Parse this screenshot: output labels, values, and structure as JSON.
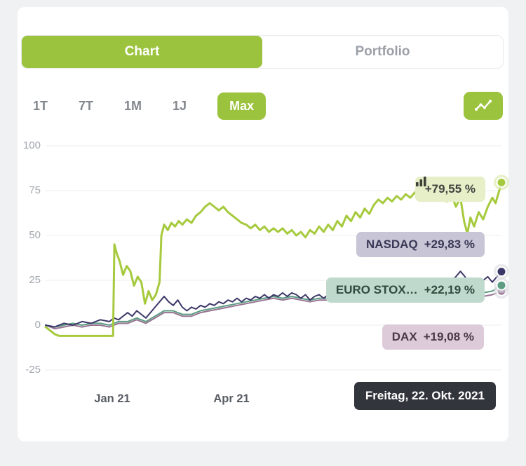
{
  "tabs": {
    "chart": "Chart",
    "portfolio": "Portfolio"
  },
  "ranges": {
    "items": [
      "1T",
      "7T",
      "1M",
      "1J",
      "Max"
    ],
    "active": "Max"
  },
  "toolbar": {
    "chart_type_icon": "line-chart-icon"
  },
  "colors": {
    "accent_green": "#9bc33d",
    "line_portfolio": "#a6ca3d",
    "line_nasdaq": "#3b3768",
    "line_eurostoxx": "#5b9c82",
    "line_dax": "#977492",
    "tooltip_bg": "#32353b"
  },
  "chart_data": {
    "type": "line",
    "title": "",
    "xlabel": "",
    "ylabel": "",
    "ylim": [
      -25,
      100
    ],
    "grid": true,
    "y_ticks": [
      100,
      75,
      50,
      25,
      0,
      -25
    ],
    "x_ticks": [
      "Jan 21",
      "Apr 21"
    ],
    "tooltip": "Freitag, 22. Okt. 2021",
    "series": [
      {
        "name": "Portfolio",
        "badge": "+79,55 %",
        "final_value": 79.55,
        "color": "#a6ca3d",
        "halo": "#d9e6a6",
        "width": 3,
        "points": [
          [
            0,
            -1
          ],
          [
            1,
            -3
          ],
          [
            2,
            -5
          ],
          [
            3,
            -6
          ],
          [
            5,
            -6
          ],
          [
            7,
            -6
          ],
          [
            9,
            -6
          ],
          [
            11,
            -6
          ],
          [
            13,
            -6
          ],
          [
            14.8,
            -6
          ],
          [
            15.1,
            45
          ],
          [
            15.6,
            40
          ],
          [
            16.2,
            36
          ],
          [
            17,
            28
          ],
          [
            17.8,
            33
          ],
          [
            18.6,
            30
          ],
          [
            19.4,
            22
          ],
          [
            20.2,
            27
          ],
          [
            21,
            24
          ],
          [
            21.8,
            12
          ],
          [
            22.6,
            19
          ],
          [
            23.4,
            14
          ],
          [
            24.2,
            17
          ],
          [
            25,
            24
          ],
          [
            25.4,
            50
          ],
          [
            26,
            56
          ],
          [
            26.8,
            53
          ],
          [
            27.6,
            57
          ],
          [
            28.4,
            55
          ],
          [
            29.2,
            58
          ],
          [
            30,
            56
          ],
          [
            31,
            59
          ],
          [
            32,
            57
          ],
          [
            33,
            61
          ],
          [
            34,
            63
          ],
          [
            35,
            66
          ],
          [
            36,
            68
          ],
          [
            37,
            66
          ],
          [
            38,
            64
          ],
          [
            39,
            66
          ],
          [
            40,
            63
          ],
          [
            41,
            61
          ],
          [
            42,
            59
          ],
          [
            43,
            57
          ],
          [
            44,
            56
          ],
          [
            45,
            54
          ],
          [
            46,
            56
          ],
          [
            47,
            53
          ],
          [
            48,
            55
          ],
          [
            49,
            52
          ],
          [
            50,
            54
          ],
          [
            51,
            52
          ],
          [
            52,
            54
          ],
          [
            53,
            51
          ],
          [
            54,
            53
          ],
          [
            55,
            50
          ],
          [
            56,
            52
          ],
          [
            57,
            49
          ],
          [
            58,
            53
          ],
          [
            59,
            51
          ],
          [
            60,
            55
          ],
          [
            61,
            52
          ],
          [
            62,
            56
          ],
          [
            63,
            53
          ],
          [
            64,
            58
          ],
          [
            65,
            55
          ],
          [
            66,
            61
          ],
          [
            67,
            58
          ],
          [
            68,
            63
          ],
          [
            69,
            60
          ],
          [
            70,
            65
          ],
          [
            71,
            62
          ],
          [
            72,
            67
          ],
          [
            73,
            70
          ],
          [
            74,
            68
          ],
          [
            75,
            71
          ],
          [
            76,
            69
          ],
          [
            77,
            72
          ],
          [
            78,
            70
          ],
          [
            79,
            73
          ],
          [
            80,
            71
          ],
          [
            81,
            74
          ],
          [
            82,
            71
          ],
          [
            83,
            75
          ],
          [
            84,
            72
          ],
          [
            85,
            76
          ],
          [
            86,
            72
          ],
          [
            87,
            75
          ],
          [
            88,
            69
          ],
          [
            89,
            73
          ],
          [
            90,
            66
          ],
          [
            91,
            71
          ],
          [
            91.8,
            58
          ],
          [
            92.5,
            51
          ],
          [
            93.2,
            60
          ],
          [
            94,
            55
          ],
          [
            95,
            63
          ],
          [
            96,
            59
          ],
          [
            97,
            66
          ],
          [
            98,
            71
          ],
          [
            98.7,
            68
          ],
          [
            99.4,
            74
          ],
          [
            100,
            79.55
          ]
        ]
      },
      {
        "name": "NASDAQ",
        "badge": "+29,83 %",
        "final_value": 29.83,
        "color": "#3b3768",
        "halo": "#dcdce2",
        "width": 2,
        "points": [
          [
            0,
            0
          ],
          [
            2,
            -1
          ],
          [
            4,
            1
          ],
          [
            6,
            0
          ],
          [
            8,
            2
          ],
          [
            10,
            1
          ],
          [
            12,
            3
          ],
          [
            14,
            2
          ],
          [
            15,
            4
          ],
          [
            16,
            3
          ],
          [
            17,
            5
          ],
          [
            18,
            7
          ],
          [
            19,
            5
          ],
          [
            20,
            8
          ],
          [
            21,
            6
          ],
          [
            22,
            4
          ],
          [
            23,
            7
          ],
          [
            24,
            10
          ],
          [
            25,
            13
          ],
          [
            26,
            16
          ],
          [
            27,
            13
          ],
          [
            28,
            11
          ],
          [
            29,
            14
          ],
          [
            30,
            10
          ],
          [
            31,
            8
          ],
          [
            32,
            10
          ],
          [
            33,
            9
          ],
          [
            34,
            11
          ],
          [
            35,
            10
          ],
          [
            36,
            12
          ],
          [
            37,
            11
          ],
          [
            38,
            13
          ],
          [
            39,
            12
          ],
          [
            40,
            14
          ],
          [
            41,
            13
          ],
          [
            42,
            15
          ],
          [
            43,
            13
          ],
          [
            44,
            15
          ],
          [
            45,
            14
          ],
          [
            46,
            16
          ],
          [
            47,
            15
          ],
          [
            48,
            17
          ],
          [
            49,
            15
          ],
          [
            50,
            17
          ],
          [
            51,
            16
          ],
          [
            52,
            18
          ],
          [
            53,
            16
          ],
          [
            54,
            18
          ],
          [
            55,
            17
          ],
          [
            56,
            15
          ],
          [
            57,
            17
          ],
          [
            58,
            14
          ],
          [
            59,
            16
          ],
          [
            60,
            17
          ],
          [
            61,
            15
          ],
          [
            62,
            17
          ],
          [
            63,
            18
          ],
          [
            64,
            19
          ],
          [
            65,
            17
          ],
          [
            66,
            19
          ],
          [
            67,
            18
          ],
          [
            68,
            20
          ],
          [
            69,
            19
          ],
          [
            70,
            21
          ],
          [
            71,
            19
          ],
          [
            72,
            21
          ],
          [
            73,
            20
          ],
          [
            74,
            22
          ],
          [
            75,
            21
          ],
          [
            76,
            22
          ],
          [
            77,
            21
          ],
          [
            78,
            23
          ],
          [
            79,
            21
          ],
          [
            80,
            20
          ],
          [
            81,
            22
          ],
          [
            82,
            23
          ],
          [
            83,
            21
          ],
          [
            84,
            20
          ],
          [
            85,
            19
          ],
          [
            86,
            21
          ],
          [
            87,
            22
          ],
          [
            88,
            23
          ],
          [
            89,
            25
          ],
          [
            90,
            27
          ],
          [
            91,
            30
          ],
          [
            92,
            27
          ],
          [
            93,
            23
          ],
          [
            94,
            20
          ],
          [
            95,
            22
          ],
          [
            96,
            25
          ],
          [
            97,
            27
          ],
          [
            98,
            24
          ],
          [
            99,
            27
          ],
          [
            100,
            29.83
          ]
        ]
      },
      {
        "name": "EURO STOX…",
        "badge": "+22,19 %",
        "final_value": 22.19,
        "color": "#5b9c82",
        "halo": "#dcdce2",
        "width": 2,
        "points": [
          [
            0,
            0
          ],
          [
            2,
            -1
          ],
          [
            4,
            0
          ],
          [
            6,
            1
          ],
          [
            8,
            0
          ],
          [
            10,
            1
          ],
          [
            12,
            1
          ],
          [
            14,
            0
          ],
          [
            16,
            2
          ],
          [
            18,
            2
          ],
          [
            20,
            4
          ],
          [
            22,
            2
          ],
          [
            24,
            5
          ],
          [
            26,
            8
          ],
          [
            28,
            8
          ],
          [
            30,
            6
          ],
          [
            32,
            6
          ],
          [
            34,
            8
          ],
          [
            36,
            9
          ],
          [
            38,
            10
          ],
          [
            40,
            11
          ],
          [
            42,
            12
          ],
          [
            44,
            13
          ],
          [
            46,
            14
          ],
          [
            48,
            15
          ],
          [
            50,
            16
          ],
          [
            52,
            15
          ],
          [
            54,
            16
          ],
          [
            56,
            15
          ],
          [
            58,
            14
          ],
          [
            60,
            15
          ],
          [
            62,
            15
          ],
          [
            64,
            16
          ],
          [
            66,
            17
          ],
          [
            68,
            17
          ],
          [
            70,
            18
          ],
          [
            72,
            18
          ],
          [
            74,
            17
          ],
          [
            76,
            18
          ],
          [
            78,
            19
          ],
          [
            80,
            17
          ],
          [
            82,
            18
          ],
          [
            84,
            17
          ],
          [
            86,
            16
          ],
          [
            88,
            18
          ],
          [
            90,
            17
          ],
          [
            92,
            19
          ],
          [
            94,
            17
          ],
          [
            96,
            18
          ],
          [
            98,
            19
          ],
          [
            100,
            22.19
          ]
        ]
      },
      {
        "name": "DAX",
        "badge": "+19,08 %",
        "final_value": 19.08,
        "color": "#977492",
        "halo": "#dcdce2",
        "width": 2,
        "points": [
          [
            0,
            0
          ],
          [
            2,
            -2
          ],
          [
            4,
            -1
          ],
          [
            6,
            0
          ],
          [
            8,
            -1
          ],
          [
            10,
            0
          ],
          [
            12,
            0
          ],
          [
            14,
            -1
          ],
          [
            16,
            1
          ],
          [
            18,
            1
          ],
          [
            20,
            3
          ],
          [
            22,
            1
          ],
          [
            24,
            4
          ],
          [
            26,
            7
          ],
          [
            28,
            7
          ],
          [
            30,
            5
          ],
          [
            32,
            5
          ],
          [
            34,
            7
          ],
          [
            36,
            8
          ],
          [
            38,
            9
          ],
          [
            40,
            10
          ],
          [
            42,
            11
          ],
          [
            44,
            12
          ],
          [
            46,
            13
          ],
          [
            48,
            14
          ],
          [
            50,
            15
          ],
          [
            52,
            14
          ],
          [
            54,
            15
          ],
          [
            56,
            14
          ],
          [
            58,
            13
          ],
          [
            60,
            14
          ],
          [
            62,
            14
          ],
          [
            64,
            15
          ],
          [
            66,
            16
          ],
          [
            68,
            16
          ],
          [
            70,
            17
          ],
          [
            72,
            17
          ],
          [
            74,
            16
          ],
          [
            76,
            17
          ],
          [
            78,
            18
          ],
          [
            80,
            16
          ],
          [
            82,
            17
          ],
          [
            84,
            16
          ],
          [
            86,
            15
          ],
          [
            88,
            17
          ],
          [
            90,
            16
          ],
          [
            92,
            18
          ],
          [
            94,
            15
          ],
          [
            96,
            16
          ],
          [
            98,
            17
          ],
          [
            100,
            19.08
          ]
        ]
      }
    ]
  }
}
